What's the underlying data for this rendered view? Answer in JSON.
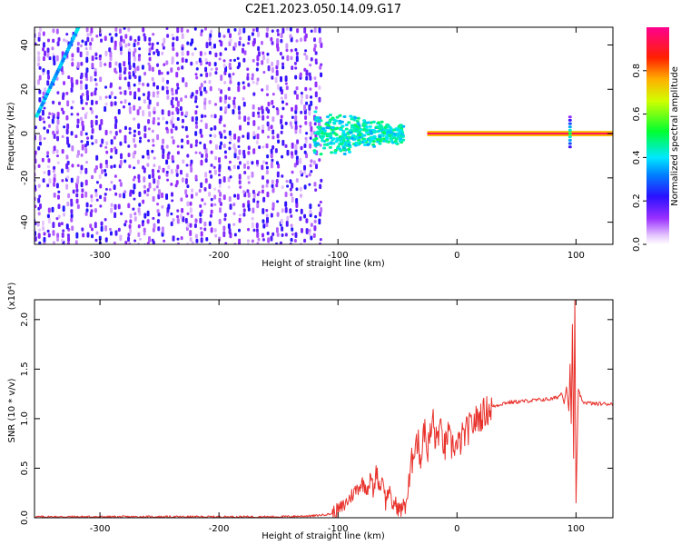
{
  "title": "C2E1.2023.050.14.09.G17",
  "chart_data": [
    {
      "type": "heatmap",
      "xlabel": "Height of straight line (km)",
      "ylabel": "Frequency (Hz)",
      "xlim": [
        -355,
        131
      ],
      "ylim": [
        -50,
        48
      ],
      "xticks": [
        -300,
        -200,
        -100,
        0,
        100
      ],
      "yticks": [
        -40,
        -20,
        0,
        20,
        40
      ],
      "colorbar": {
        "label": "Normalized spectral amplitude",
        "range": [
          0,
          1
        ],
        "ticks": [
          "0.0",
          "0.2",
          "0.4",
          "0.6",
          "0.8"
        ],
        "tick_values": [
          0.0,
          0.2,
          0.4,
          0.6,
          0.8
        ],
        "colormap": "rainbow: white to violet, blue, cyan, green, yellow, orange, red, magenta"
      },
      "features": [
        {
          "name": "diffuse noise",
          "x_range": [
            -355,
            -115
          ],
          "frequency_range": [
            -50,
            48
          ],
          "amplitude": 0.15
        },
        {
          "name": "rising streak",
          "x_range": [
            -353,
            -318
          ],
          "frequency_range": [
            8,
            48
          ],
          "amplitude": 0.3
        },
        {
          "name": "cluster",
          "x_range": [
            -120,
            -45
          ],
          "frequency_range": [
            -12,
            12
          ],
          "amplitude": 0.35
        },
        {
          "name": "narrow line",
          "x_range": [
            -25,
            131
          ],
          "frequency": 0,
          "amplitude": 0.95
        },
        {
          "name": "spike",
          "x": 95,
          "frequency_range": [
            -6,
            8
          ],
          "amplitude": 0.5
        }
      ]
    },
    {
      "type": "line",
      "xlabel": "Height of straight line (km)",
      "ylabel": "SNR (10 * v/v)",
      "y_multiplier": "(x10⁴)",
      "xlim": [
        -355,
        131
      ],
      "ylim": [
        0,
        2.2
      ],
      "xticks": [
        -300,
        -200,
        -100,
        0,
        100
      ],
      "yticks": [
        "0.0",
        "0.5",
        "1.0",
        "1.5",
        "2.0"
      ],
      "ytick_values": [
        0.0,
        0.5,
        1.0,
        1.5,
        2.0
      ],
      "line_color": "#e8322c",
      "series": [
        {
          "x": [
            -355,
            -300,
            -250,
            -200,
            -150,
            -120,
            -105,
            -100,
            -95,
            -90,
            -85,
            -80,
            -75,
            -72,
            -70,
            -68,
            -65,
            -62,
            -60,
            -57,
            -55,
            -52,
            -50,
            -47,
            -45,
            -42,
            -40,
            -38,
            -35,
            -32,
            -30,
            -28,
            -25,
            -22,
            -20,
            -18,
            -15,
            -12,
            -10,
            -8,
            -5,
            -2,
            0,
            5,
            10,
            15,
            20,
            25,
            30,
            35,
            40,
            50,
            60,
            70,
            80,
            85,
            88,
            90,
            92,
            94,
            95,
            96,
            97,
            98,
            99,
            100,
            102,
            105,
            110,
            115,
            120,
            125,
            131
          ],
          "y": [
            0.01,
            0.01,
            0.01,
            0.01,
            0.01,
            0.02,
            0.04,
            0.07,
            0.12,
            0.2,
            0.28,
            0.35,
            0.3,
            0.42,
            0.22,
            0.5,
            0.3,
            0.42,
            0.15,
            0.3,
            0.12,
            0.15,
            0.1,
            0.08,
            0.12,
            0.2,
            0.35,
            0.55,
            0.8,
            0.72,
            0.58,
            0.95,
            0.68,
            0.85,
            1.0,
            0.75,
            0.9,
            0.8,
            0.68,
            0.85,
            0.72,
            0.75,
            0.7,
            0.82,
            0.9,
            0.97,
            1.03,
            1.08,
            1.12,
            1.14,
            1.16,
            1.17,
            1.18,
            1.19,
            1.2,
            1.22,
            1.26,
            1.15,
            1.32,
            1.08,
            1.55,
            0.95,
            1.95,
            0.6,
            2.2,
            0.15,
            1.3,
            1.17,
            1.16,
            1.15,
            1.15,
            1.15,
            1.15
          ]
        }
      ]
    }
  ]
}
